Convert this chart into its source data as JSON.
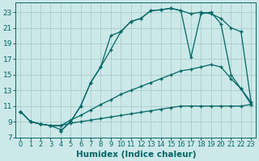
{
  "xlabel": "Humidex (Indice chaleur)",
  "ylabel": "",
  "xlim": [
    -0.5,
    23.5
  ],
  "ylim": [
    7,
    24.2
  ],
  "xticks": [
    0,
    1,
    2,
    3,
    4,
    5,
    6,
    7,
    8,
    9,
    10,
    11,
    12,
    13,
    14,
    15,
    16,
    17,
    18,
    19,
    20,
    21,
    22,
    23
  ],
  "yticks": [
    7,
    9,
    11,
    13,
    15,
    17,
    19,
    21,
    23
  ],
  "bg_color": "#cce8e8",
  "grid_color": "#aacccc",
  "line_color": "#006666",
  "line1_x": [
    0,
    1,
    2,
    3,
    4,
    5,
    6,
    7,
    8,
    9,
    10,
    11,
    12,
    13,
    14,
    15,
    16,
    17,
    18,
    19,
    20,
    21,
    22,
    23
  ],
  "line1_y": [
    10.3,
    9.0,
    8.7,
    8.5,
    8.5,
    8.8,
    9.0,
    9.2,
    9.4,
    9.6,
    9.8,
    10.0,
    10.2,
    10.4,
    10.6,
    10.8,
    11.0,
    11.0,
    11.0,
    11.0,
    11.0,
    11.0,
    11.0,
    11.2
  ],
  "line2_x": [
    0,
    1,
    2,
    3,
    4,
    5,
    6,
    7,
    8,
    9,
    10,
    11,
    12,
    13,
    14,
    15,
    16,
    17,
    18,
    19,
    20,
    21,
    22,
    23
  ],
  "line2_y": [
    10.3,
    9.0,
    8.7,
    8.5,
    8.5,
    9.2,
    9.8,
    10.5,
    11.2,
    11.8,
    12.5,
    13.0,
    13.5,
    14.0,
    14.5,
    15.0,
    15.5,
    15.7,
    16.0,
    16.3,
    16.0,
    14.5,
    13.2,
    11.2
  ],
  "line3_x": [
    0,
    1,
    2,
    3,
    4,
    4,
    5,
    6,
    7,
    8,
    9,
    10,
    11,
    12,
    13,
    14,
    15,
    16,
    17,
    18,
    19,
    20,
    21,
    22,
    23
  ],
  "line3_y": [
    10.3,
    9.0,
    8.7,
    8.5,
    8.0,
    7.8,
    9.0,
    11.0,
    14.0,
    16.0,
    18.2,
    20.5,
    21.8,
    22.2,
    23.2,
    23.3,
    23.5,
    23.2,
    22.8,
    23.0,
    22.8,
    22.2,
    21.0,
    20.5,
    11.5
  ],
  "line4_x": [
    4,
    5,
    6,
    7,
    8,
    9,
    10,
    11,
    12,
    13,
    14,
    15,
    16,
    17,
    18,
    19,
    20,
    21,
    22,
    23
  ],
  "line4_y": [
    7.8,
    9.0,
    11.0,
    14.0,
    16.0,
    20.0,
    20.5,
    21.8,
    22.2,
    23.2,
    23.3,
    23.5,
    23.2,
    17.2,
    22.8,
    23.0,
    21.5,
    15.0,
    13.2,
    11.5
  ],
  "fontsize_xlabel": 7.5,
  "fontsize_ticks": 6.0
}
